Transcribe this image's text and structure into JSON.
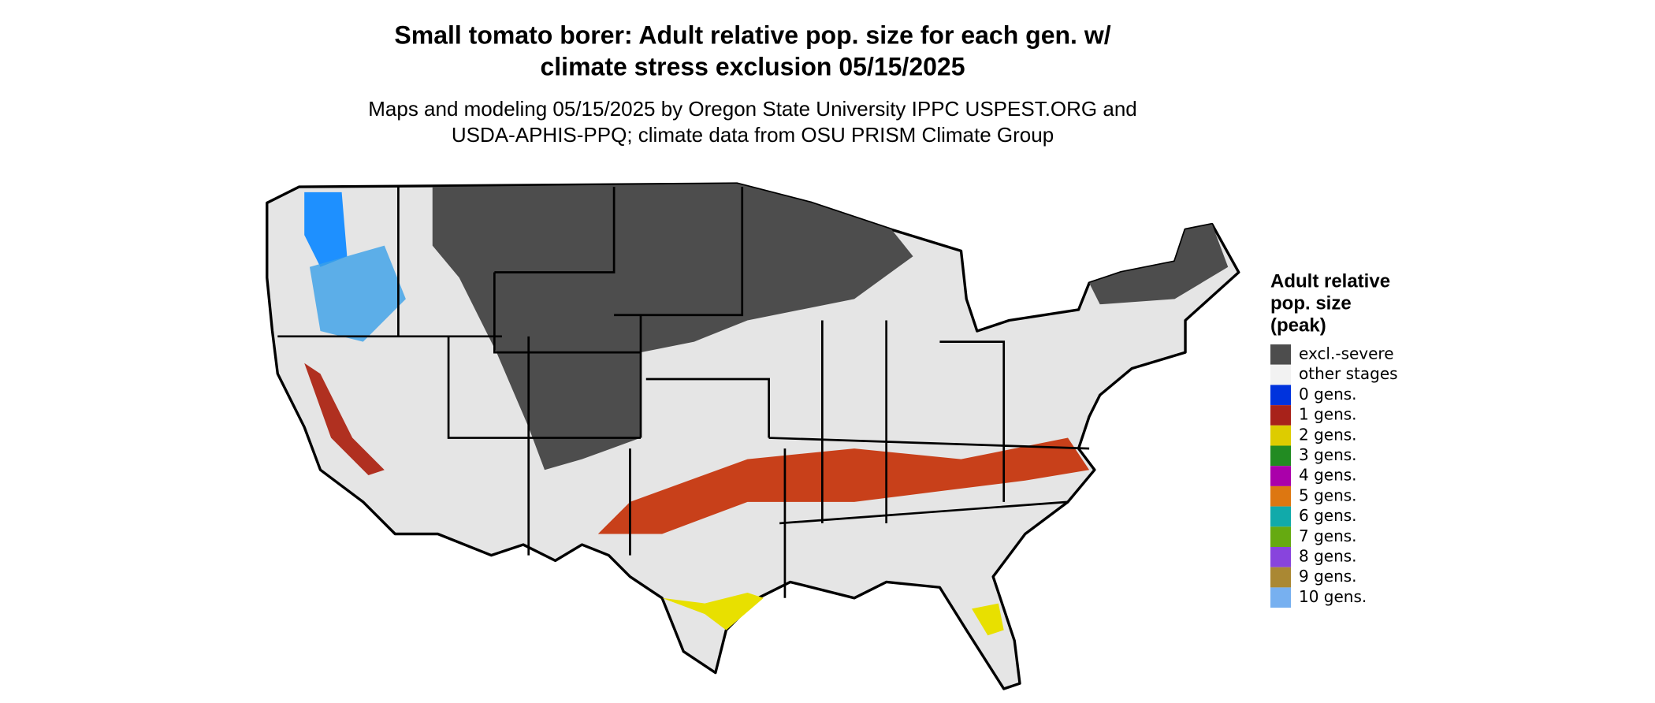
{
  "title": [
    "Small tomato borer: Adult relative pop. size for each gen. w/",
    "climate stress exclusion 05/15/2025"
  ],
  "subtitle": [
    "Maps and modeling 05/15/2025 by Oregon State University IPPC USPEST.ORG and",
    "USDA-APHIS-PPQ; climate data from OSU PRISM Climate Group"
  ],
  "legend": {
    "title": [
      "Adult relative",
      "pop. size",
      "(peak)"
    ],
    "items": [
      {
        "label": "excl.-severe",
        "color": "#4d4d4d"
      },
      {
        "label": "other stages",
        "color": "#f2f2f2"
      },
      {
        "label": "0 gens.",
        "color": "#0033dd"
      },
      {
        "label": "1 gens.",
        "color": "#a8221a"
      },
      {
        "label": "2 gens.",
        "color": "#ddcc00"
      },
      {
        "label": "3 gens.",
        "color": "#228b22"
      },
      {
        "label": "4 gens.",
        "color": "#aa00aa"
      },
      {
        "label": "5 gens.",
        "color": "#dd7711"
      },
      {
        "label": "6 gens.",
        "color": "#11aaaa"
      },
      {
        "label": "7 gens.",
        "color": "#66aa11"
      },
      {
        "label": "8 gens.",
        "color": "#8844dd"
      },
      {
        "label": "9 gens.",
        "color": "#aa8833"
      },
      {
        "label": "10 gens.",
        "color": "#77b0f0"
      }
    ]
  }
}
